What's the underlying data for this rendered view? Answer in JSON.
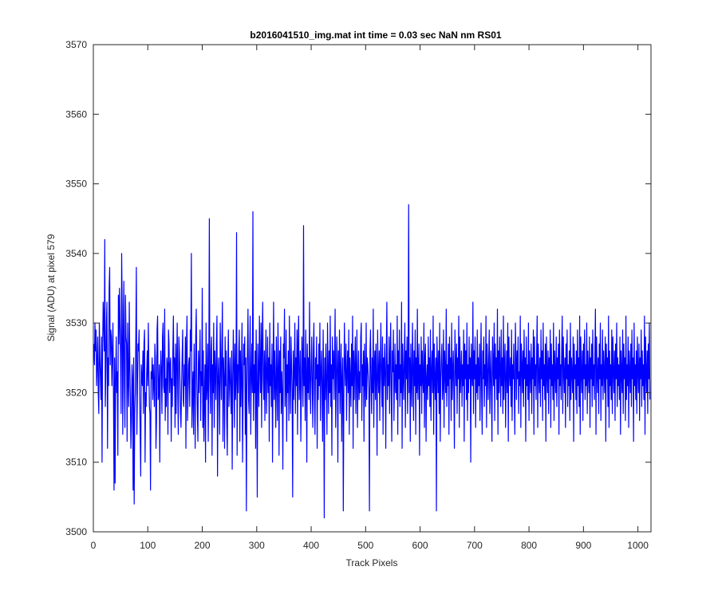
{
  "chart_data": {
    "type": "line",
    "title": "b2016041510_img.mat int time = 0.03 sec  NaN nm RS01",
    "xlabel": "Track Pixels",
    "ylabel": "Signal (ADU) at pixel 579",
    "xlim": [
      0,
      1024
    ],
    "ylim": [
      3500,
      3570
    ],
    "xticks": [
      0,
      100,
      200,
      300,
      400,
      500,
      600,
      700,
      800,
      900,
      1000
    ],
    "yticks": [
      3500,
      3510,
      3520,
      3530,
      3540,
      3550,
      3560,
      3570
    ],
    "grid": false,
    "series": [
      {
        "color": "#0000ff",
        "x_start": 1,
        "x_step": 1,
        "values_note_omitted": null,
        "values": [
          3527,
          3524,
          3530,
          3526,
          3529,
          3521,
          3524,
          3528,
          3520,
          3517,
          3530,
          3525,
          3522,
          3519,
          3528,
          3510,
          3526,
          3533,
          3530,
          3526,
          3542,
          3518,
          3523,
          3530,
          3533,
          3512,
          3525,
          3521,
          3535,
          3538,
          3524,
          3529,
          3528,
          3521,
          3526,
          3530,
          3519,
          3506,
          3525,
          3507,
          3522,
          3528,
          3520,
          3523,
          3511,
          3534,
          3527,
          3535,
          3530,
          3525,
          3517,
          3540,
          3532,
          3514,
          3528,
          3536,
          3521,
          3515,
          3534,
          3528,
          3527,
          3513,
          3530,
          3522,
          3518,
          3533,
          3524,
          3519,
          3512,
          3516,
          3524,
          3522,
          3506,
          3525,
          3504,
          3517,
          3520,
          3528,
          3538,
          3514,
          3521,
          3527,
          3526,
          3529,
          3520,
          3514,
          3508,
          3524,
          3522,
          3521,
          3526,
          3517,
          3527,
          3529,
          3510,
          3520,
          3518,
          3523,
          3526,
          3521,
          3530,
          3523,
          3518,
          3517,
          3506,
          3523,
          3522,
          3525,
          3519,
          3524,
          3521,
          3518,
          3527,
          3525,
          3512,
          3516,
          3529,
          3531,
          3519,
          3520,
          3524,
          3510,
          3522,
          3526,
          3523,
          3517,
          3528,
          3530,
          3521,
          3520,
          3532,
          3516,
          3522,
          3518,
          3525,
          3524,
          3514,
          3529,
          3527,
          3520,
          3524,
          3525,
          3513,
          3522,
          3518,
          3526,
          3531,
          3521,
          3525,
          3515,
          3527,
          3517,
          3524,
          3530,
          3520,
          3514,
          3528,
          3526,
          3522,
          3517,
          3515,
          3521,
          3525,
          3529,
          3519,
          3518,
          3524,
          3521,
          3528,
          3512,
          3527,
          3531,
          3516,
          3520,
          3524,
          3525,
          3518,
          3529,
          3526,
          3540,
          3515,
          3520,
          3523,
          3514,
          3527,
          3522,
          3512,
          3528,
          3532,
          3522,
          3517,
          3513,
          3526,
          3520,
          3524,
          3529,
          3516,
          3523,
          3521,
          3535,
          3515,
          3526,
          3513,
          3519,
          3524,
          3510,
          3530,
          3519,
          3521,
          3527,
          3513,
          3523,
          3545,
          3522,
          3517,
          3526,
          3528,
          3511,
          3524,
          3520,
          3530,
          3515,
          3526,
          3523,
          3519,
          3527,
          3531,
          3508,
          3522,
          3525,
          3520,
          3514,
          3530,
          3524,
          3519,
          3527,
          3533,
          3513,
          3525,
          3522,
          3512,
          3528,
          3521,
          3526,
          3516,
          3511,
          3524,
          3529,
          3518,
          3522,
          3525,
          3520,
          3517,
          3526,
          3509,
          3521,
          3529,
          3524,
          3515,
          3527,
          3519,
          3522,
          3543,
          3511,
          3524,
          3520,
          3526,
          3529,
          3513,
          3526,
          3518,
          3523,
          3530,
          3510,
          3520,
          3527,
          3524,
          3528,
          3514,
          3525,
          3503,
          3521,
          3526,
          3532,
          3519,
          3517,
          3525,
          3531,
          3514,
          3522,
          3527,
          3520,
          3546,
          3516,
          3524,
          3520,
          3526,
          3512,
          3529,
          3521,
          3505,
          3527,
          3523,
          3518,
          3531,
          3524,
          3520,
          3530,
          3515,
          3527,
          3533,
          3522,
          3519,
          3526,
          3516,
          3524,
          3529,
          3517,
          3522,
          3528,
          3520,
          3525,
          3513,
          3530,
          3521,
          3524,
          3518,
          3527,
          3510,
          3523,
          3533,
          3519,
          3526,
          3521,
          3515,
          3528,
          3522,
          3516,
          3530,
          3524,
          3511,
          3526,
          3520,
          3528,
          3517,
          3523,
          3520,
          3509,
          3527,
          3525,
          3532,
          3518,
          3521,
          3529,
          3513,
          3524,
          3520,
          3526,
          3516,
          3531,
          3522,
          3517,
          3528,
          3524,
          3520,
          3505,
          3526,
          3519,
          3523,
          3530,
          3517,
          3525,
          3521,
          3529,
          3514,
          3527,
          3531,
          3519,
          3522,
          3526,
          3513,
          3520,
          3528,
          3524,
          3518,
          3544,
          3521,
          3525,
          3516,
          3529,
          3523,
          3510,
          3527,
          3520,
          3525,
          3519,
          3533,
          3522,
          3517,
          3524,
          3528,
          3521,
          3515,
          3526,
          3530,
          3520,
          3514,
          3525,
          3522,
          3528,
          3512,
          3524,
          3519,
          3527,
          3521,
          3530,
          3516,
          3523,
          3526,
          3520,
          3513,
          3529,
          3522,
          3502,
          3525,
          3519,
          3527,
          3521,
          3514,
          3530,
          3524,
          3517,
          3526,
          3520,
          3531,
          3518,
          3524,
          3511,
          3528,
          3522,
          3526,
          3519,
          3525,
          3532,
          3515,
          3521,
          3528,
          3524,
          3510,
          3526,
          3520,
          3529,
          3517,
          3523,
          3527,
          3513,
          3522,
          3525,
          3503,
          3519,
          3530,
          3524,
          3521,
          3527,
          3516,
          3523,
          3526,
          3520,
          3529,
          3514,
          3525,
          3522,
          3518,
          3527,
          3521,
          3531,
          3512,
          3526,
          3519,
          3524,
          3528,
          3517,
          3523,
          3529,
          3515,
          3521,
          3526,
          3519,
          3523,
          3520,
          3528,
          3530,
          3516,
          3524,
          3521,
          3526,
          3513,
          3527,
          3522,
          3518,
          3530,
          3519,
          3525,
          3524,
          3522,
          3520,
          3503,
          3526,
          3529,
          3521,
          3517,
          3525,
          3520,
          3532,
          3515,
          3524,
          3526,
          3519,
          3527,
          3522,
          3511,
          3529,
          3523,
          3520,
          3526,
          3516,
          3524,
          3530,
          3522,
          3518,
          3528,
          3514,
          3525,
          3521,
          3527,
          3523,
          3512,
          3526,
          3533,
          3519,
          3524,
          3521,
          3528,
          3517,
          3525,
          3530,
          3520,
          3513,
          3526,
          3523,
          3529,
          3516,
          3522,
          3527,
          3520,
          3524,
          3519,
          3531,
          3514,
          3526,
          3522,
          3529,
          3518,
          3524,
          3520,
          3533,
          3512,
          3527,
          3523,
          3519,
          3525,
          3530,
          3515,
          3526,
          3522,
          3528,
          3517,
          3523,
          3547,
          3520,
          3525,
          3513,
          3527,
          3522,
          3518,
          3530,
          3524,
          3516,
          3526,
          3521,
          3529,
          3514,
          3525,
          3520,
          3532,
          3519,
          3523,
          3527,
          3511,
          3524,
          3521,
          3528,
          3517,
          3526,
          3522,
          3520,
          3530,
          3515,
          3525,
          3527,
          3513,
          3522,
          3524,
          3519,
          3528,
          3521,
          3525,
          3518,
          3529,
          3516,
          3523,
          3526,
          3520,
          3531,
          3514,
          3527,
          3522,
          3519,
          3525,
          3503,
          3528,
          3524,
          3520,
          3526,
          3517,
          3530,
          3513,
          3522,
          3525,
          3527,
          3519,
          3521,
          3529,
          3515,
          3526,
          3523,
          3520,
          3532,
          3518,
          3524,
          3521,
          3527,
          3514,
          3528,
          3522,
          3525,
          3516,
          3530,
          3519,
          3523,
          3526,
          3520,
          3512,
          3529,
          3524,
          3521,
          3527,
          3517,
          3525,
          3522,
          3531,
          3515,
          3528,
          3520,
          3523,
          3526,
          3518,
          3524,
          3521,
          3529,
          3513,
          3527,
          3522,
          3526,
          3519,
          3530,
          3516,
          3524,
          3520,
          3528,
          3522,
          3525,
          3510,
          3527,
          3523,
          3521,
          3533,
          3517,
          3526,
          3522,
          3528,
          3515,
          3524,
          3520,
          3529,
          3519,
          3525,
          3521,
          3527,
          3516,
          3523,
          3530,
          3520,
          3514,
          3526,
          3522,
          3528,
          3518,
          3524,
          3521,
          3531,
          3515,
          3527,
          3523,
          3519,
          3525,
          3529,
          3517,
          3522,
          3526,
          3520,
          3513,
          3528,
          3524,
          3521,
          3530,
          3516,
          3527,
          3522,
          3525,
          3519,
          3532,
          3514,
          3526,
          3520,
          3528,
          3523,
          3518,
          3529,
          3521,
          3525,
          3517,
          3531,
          3519,
          3524,
          3527,
          3515,
          3522,
          3526,
          3520,
          3530,
          3513,
          3528,
          3523,
          3521,
          3525,
          3518,
          3529,
          3516,
          3524,
          3522,
          3527,
          3520,
          3514,
          3530,
          3525,
          3519,
          3526,
          3522,
          3528,
          3517,
          3523,
          3521,
          3531,
          3515,
          3527,
          3524,
          3520,
          3526,
          3518,
          3529,
          3522,
          3525,
          3513,
          3528,
          3521,
          3524,
          3519,
          3530,
          3516,
          3526,
          3523,
          3520,
          3527,
          3517,
          3525,
          3522,
          3529,
          3514,
          3528,
          3521,
          3524,
          3519,
          3526,
          3531,
          3515,
          3527,
          3523,
          3520,
          3525,
          3518,
          3529,
          3522,
          3526,
          3516,
          3530,
          3521,
          3524,
          3519,
          3527,
          3513,
          3528,
          3523,
          3520,
          3526,
          3517,
          3525,
          3522,
          3529,
          3515,
          3527,
          3521,
          3524,
          3519,
          3530,
          3516,
          3526,
          3523,
          3520,
          3528,
          3518,
          3525,
          3522,
          3527,
          3514,
          3529,
          3521,
          3524,
          3519,
          3526,
          3531,
          3517,
          3528,
          3523,
          3520,
          3525,
          3515,
          3527,
          3522,
          3529,
          3518,
          3524,
          3521,
          3526,
          3516,
          3530,
          3519,
          3525,
          3523,
          3520,
          3528,
          3513,
          3527,
          3522,
          3524,
          3519,
          3526,
          3517,
          3529,
          3521,
          3525,
          3518,
          3531,
          3514,
          3528,
          3523,
          3520,
          3526,
          3516,
          3527,
          3522,
          3529,
          3519,
          3524,
          3521,
          3530,
          3517,
          3526,
          3523,
          3520,
          3528,
          3515,
          3525,
          3522,
          3527,
          3518,
          3529,
          3521,
          3524,
          3519,
          3526,
          3532,
          3514,
          3528,
          3523,
          3520,
          3525,
          3517,
          3527,
          3522,
          3530,
          3516,
          3524,
          3521,
          3529,
          3519,
          3526,
          3523,
          3520,
          3528,
          3513,
          3527,
          3522,
          3525,
          3518,
          3531,
          3515,
          3526,
          3521,
          3524,
          3519,
          3529,
          3517,
          3528,
          3523,
          3520,
          3526,
          3516,
          3527,
          3522,
          3530,
          3518,
          3525,
          3521,
          3524,
          3519,
          3528,
          3514,
          3526,
          3523,
          3520,
          3529,
          3517,
          3527,
          3522,
          3525,
          3516,
          3531,
          3519,
          3524,
          3521,
          3528,
          3515,
          3526,
          3523,
          3520,
          3527,
          3518,
          3529,
          3522,
          3525,
          3513,
          3530,
          3521,
          3524,
          3519,
          3526,
          3517,
          3528,
          3523,
          3520,
          3527,
          3516,
          3525,
          3522,
          3529,
          3518,
          3526,
          3521,
          3524,
          3519,
          3531,
          3514,
          3528,
          3523,
          3520,
          3526,
          3517,
          3527,
          3522,
          3530,
          3519
        ]
      }
    ]
  }
}
